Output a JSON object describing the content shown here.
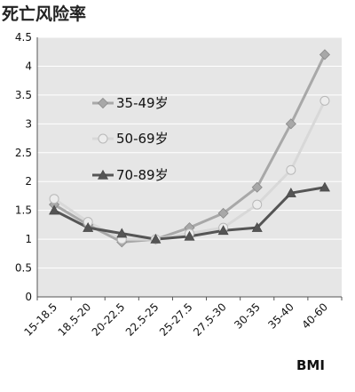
{
  "chart_data": {
    "type": "line",
    "title": "死亡风险率",
    "xlabel": "BMI",
    "ylabel": "",
    "ylim": [
      0,
      4.5
    ],
    "yticks": [
      "0",
      "0.5",
      "1",
      "1.5",
      "2",
      "2.5",
      "3",
      "3.5",
      "4",
      "4.5"
    ],
    "categories": [
      "15-18.5",
      "18.5-20",
      "20-22.5",
      "22.5-25",
      "25-27.5",
      "27.5-30",
      "30-35",
      "35-40",
      "40-60"
    ],
    "grid": true,
    "legend_position": "left-middle",
    "plot_background": "#e6e6e6",
    "series": [
      {
        "name": "35-49岁",
        "marker": "diamond",
        "color": "#a8a8a8",
        "values": [
          1.6,
          1.25,
          0.95,
          1.0,
          1.2,
          1.45,
          1.9,
          3.0,
          4.2
        ]
      },
      {
        "name": "50-69岁",
        "marker": "circle",
        "color": "#d8d8d8",
        "values": [
          1.7,
          1.3,
          1.0,
          1.0,
          1.1,
          1.2,
          1.6,
          2.2,
          3.4
        ]
      },
      {
        "name": "70-89岁",
        "marker": "triangle",
        "color": "#555555",
        "values": [
          1.5,
          1.2,
          1.1,
          1.0,
          1.05,
          1.15,
          1.2,
          1.8,
          1.9
        ]
      }
    ]
  }
}
